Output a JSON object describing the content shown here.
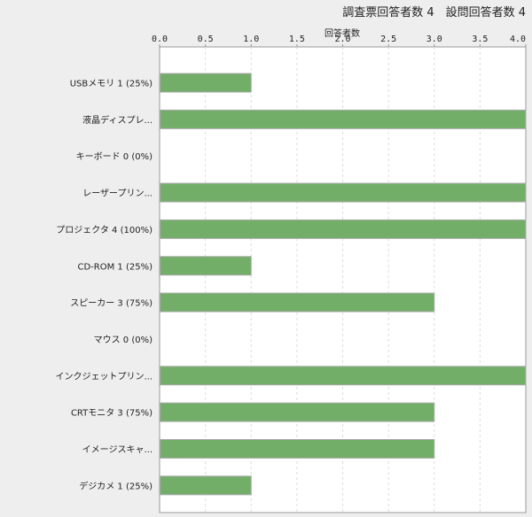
{
  "header": {
    "summary": "調査票回答者数 4　設問回答者数 4"
  },
  "chart_data": {
    "type": "bar",
    "orientation": "horizontal",
    "title": "",
    "xlabel": "回答者数",
    "ylabel": "",
    "xlim": [
      0,
      4.0
    ],
    "x_ticks": [
      "0.0",
      "0.5",
      "1.0",
      "1.5",
      "2.0",
      "2.5",
      "3.0",
      "3.5",
      "4.0"
    ],
    "grid": "vertical dashed",
    "bar_color": "#73ae69",
    "categories": [
      "USBメモリ 1 (25%)",
      "液晶ディスプレ...",
      "キーボード 0 (0%)",
      "レーザープリン...",
      "プロジェクタ 4 (100%)",
      "CD-ROM 1 (25%)",
      "スピーカー 3 (75%)",
      "マウス 0 (0%)",
      "インクジェットプリン...",
      "CRTモニタ 3 (75%)",
      "イメージスキャ...",
      "デジカメ 1 (25%)"
    ],
    "values": [
      1,
      4,
      0,
      4,
      4,
      1,
      3,
      0,
      4,
      3,
      3,
      1
    ]
  }
}
